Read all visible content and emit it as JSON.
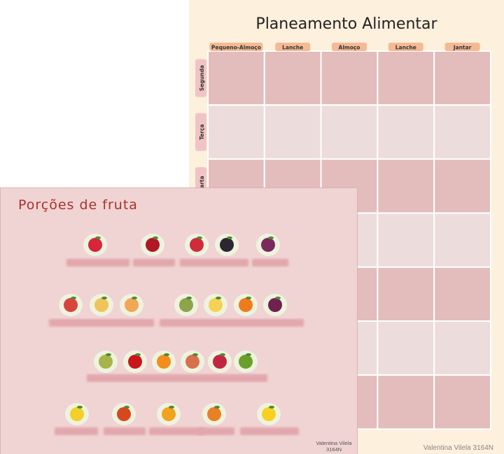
{
  "planner": {
    "title": "Planeamento Alimentar",
    "columns": [
      "Pequeno-Almoço",
      "Lanche",
      "Almoço",
      "Lanche",
      "Jantar"
    ],
    "rows": [
      "Segunda",
      "Terça",
      "Quarta"
    ],
    "footer": "Valentina Vilela 3164N"
  },
  "fruit_sheet": {
    "title": "Porções de fruta",
    "author": [
      "Valentina Vilela",
      "3164N"
    ]
  }
}
